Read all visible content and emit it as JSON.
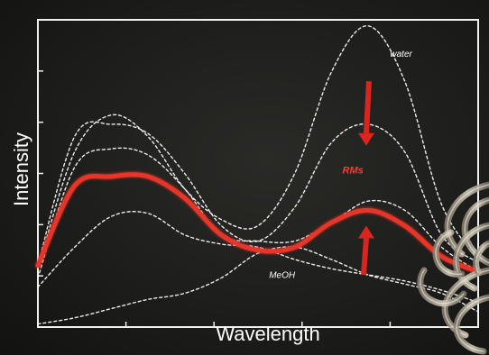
{
  "chart_data": {
    "type": "line",
    "title": "",
    "xlabel": "Wavelength",
    "ylabel": "Intensity",
    "x": [
      0,
      1,
      2,
      3,
      4,
      5,
      6,
      7,
      8,
      9,
      10,
      11,
      12
    ],
    "xlim": [
      0,
      12
    ],
    "ylim": [
      0,
      10
    ],
    "axis_tick_labels": "none",
    "grid": false,
    "series": [
      {
        "name": "RMs",
        "style": "solid-red",
        "color": "#e8342a",
        "values": [
          2.0,
          4.6,
          4.9,
          4.9,
          4.2,
          3.0,
          2.5,
          2.6,
          3.4,
          3.8,
          3.3,
          2.3,
          1.8
        ]
      },
      {
        "name": "water",
        "style": "dashed-white",
        "color": "#ffffff",
        "values": [
          1.9,
          5.7,
          6.9,
          6.2,
          4.5,
          3.5,
          3.3,
          5.0,
          8.3,
          9.8,
          8.0,
          4.0,
          2.2
        ]
      },
      {
        "name": "",
        "style": "dashed-white",
        "color": "#ffffff",
        "values": [
          2.0,
          6.2,
          6.6,
          6.3,
          5.0,
          3.3,
          2.8,
          3.9,
          6.0,
          6.6,
          5.7,
          3.0,
          2.1
        ]
      },
      {
        "name": "",
        "style": "dashed-white",
        "color": "#ffffff",
        "values": [
          1.6,
          5.2,
          5.8,
          5.6,
          4.5,
          3.0,
          2.8,
          2.8,
          3.4,
          4.1,
          3.8,
          2.6,
          1.8
        ]
      },
      {
        "name": "",
        "style": "dashed-white",
        "color": "#ffffff",
        "values": [
          1.3,
          2.6,
          3.6,
          3.7,
          3.0,
          2.7,
          2.6,
          2.2,
          1.9,
          1.7,
          1.5,
          1.2,
          0.8
        ]
      },
      {
        "name": "MeOH",
        "style": "dashed-white",
        "color": "#ffffff",
        "values": [
          0.1,
          0.3,
          0.6,
          0.9,
          1.1,
          1.6,
          2.4,
          2.6,
          2.2,
          1.7,
          1.4,
          1.1,
          0.5
        ]
      }
    ],
    "annotations": [
      {
        "text": "water",
        "style": "italic-white",
        "near_series": "water"
      },
      {
        "text": "RMs",
        "style": "bold-italic-red",
        "near_series": "RMs"
      },
      {
        "text": "MeOH",
        "style": "italic-white",
        "near_series": "MeOH"
      }
    ],
    "arrows": [
      {
        "meaning": "water peak decreasing",
        "direction": "down",
        "color": "#e8342a"
      },
      {
        "meaning": "MeOH peak increasing toward RMs",
        "direction": "up",
        "color": "#e8342a"
      }
    ]
  }
}
